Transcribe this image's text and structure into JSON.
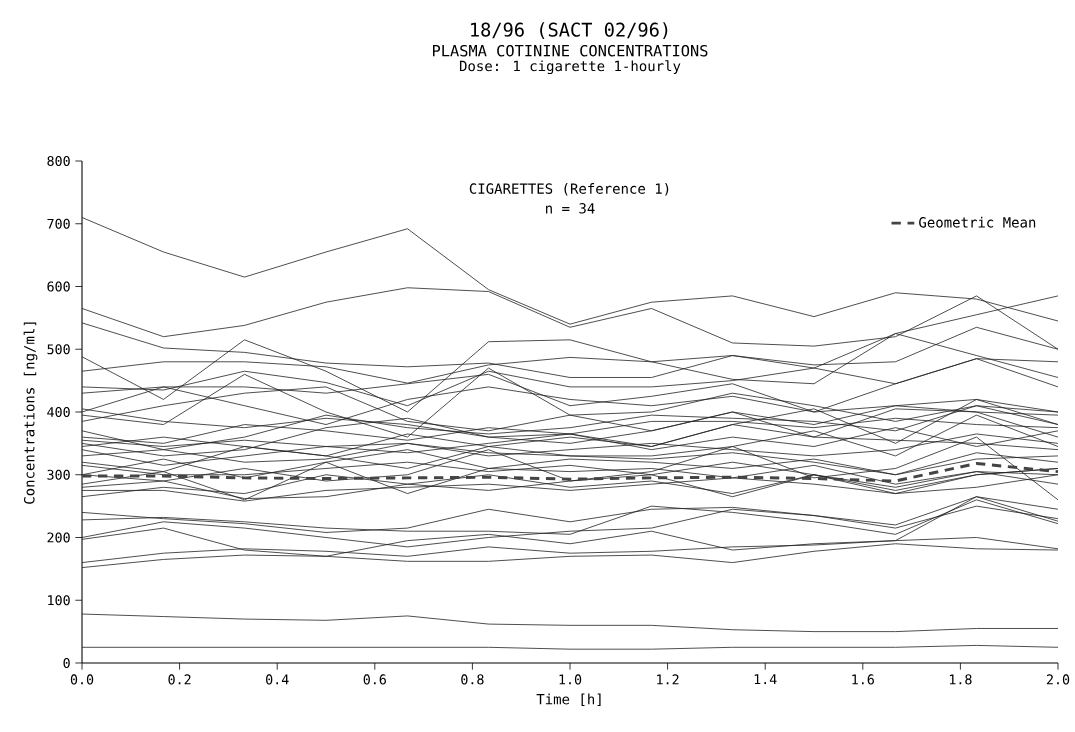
{
  "chart_data": {
    "type": "line",
    "title": "18/96 (SACT 02/96)",
    "subtitle": "PLASMA COTININE CONCENTRATIONS",
    "annotations": [
      "Dose: 1 cigarette 1-hourly",
      "CIGARETTES (Reference 1)",
      "n = 34"
    ],
    "xlabel": "Time [h]",
    "ylabel": "Concentrations [ng/ml]",
    "x": [
      0,
      0.167,
      0.333,
      0.5,
      0.667,
      0.833,
      1.0,
      1.167,
      1.333,
      1.5,
      1.667,
      1.833,
      2.0
    ],
    "xlim": [
      0,
      2
    ],
    "ylim": [
      0,
      800
    ],
    "xticks": [
      {
        "value": 0,
        "label": "0.0"
      },
      0.2,
      0.4,
      0.6,
      0.8,
      {
        "value": 1,
        "label": "1.0"
      },
      1.2,
      1.4,
      1.6,
      1.8,
      {
        "value": 2,
        "label": "2.0"
      }
    ],
    "yticks": [
      0,
      100,
      200,
      300,
      400,
      500,
      600,
      700,
      800
    ],
    "grid": false,
    "legend": "top right",
    "series": [
      {
        "color": "#222222",
        "values": [
          710,
          655,
          615,
          655,
          692,
          595,
          540,
          575,
          585,
          552,
          590,
          580,
          545
        ]
      },
      {
        "color": "#222222",
        "values": [
          565,
          520,
          538,
          575,
          598,
          592,
          535,
          565,
          510,
          505,
          520,
          585,
          500
        ]
      },
      {
        "color": "#222222",
        "values": [
          542,
          502,
          495,
          478,
          472,
          478,
          455,
          455,
          490,
          470,
          525,
          555,
          585
        ]
      },
      {
        "color": "#222222",
        "values": [
          488,
          420,
          515,
          465,
          400,
          512,
          515,
          480,
          452,
          445,
          525,
          490,
          455
        ]
      },
      {
        "color": "#222222",
        "values": [
          465,
          480,
          480,
          472,
          446,
          475,
          487,
          480,
          490,
          475,
          480,
          535,
          500
        ]
      },
      {
        "color": "#222222",
        "values": [
          440,
          435,
          465,
          447,
          410,
          465,
          440,
          440,
          450,
          470,
          445,
          485,
          480
        ]
      },
      {
        "color": "#222222",
        "values": [
          430,
          440,
          440,
          430,
          445,
          460,
          410,
          425,
          445,
          400,
          445,
          485,
          440
        ]
      },
      {
        "color": "#222222",
        "values": [
          400,
          440,
          410,
          380,
          420,
          440,
          420,
          410,
          425,
          400,
          410,
          420,
          400
        ]
      },
      {
        "color": "#222222",
        "values": [
          385,
          410,
          430,
          440,
          385,
          370,
          395,
          400,
          430,
          410,
          385,
          410,
          380
        ]
      },
      {
        "color": "#222222",
        "values": [
          395,
          380,
          460,
          400,
          360,
          470,
          395,
          370,
          400,
          380,
          410,
          400,
          395
        ]
      },
      {
        "color": "#222222",
        "values": [
          370,
          340,
          360,
          395,
          375,
          365,
          375,
          395,
          390,
          385,
          370,
          410,
          400
        ]
      },
      {
        "color": "#222222",
        "values": [
          360,
          350,
          380,
          370,
          355,
          375,
          365,
          385,
          385,
          375,
          390,
          380,
          375
        ]
      },
      {
        "color": "#222222",
        "values": [
          350,
          330,
          340,
          375,
          390,
          360,
          350,
          370,
          400,
          360,
          405,
          400,
          360
        ]
      },
      {
        "color": "#222222",
        "values": [
          345,
          360,
          345,
          330,
          365,
          345,
          360,
          345,
          380,
          405,
          350,
          420,
          380
        ]
      },
      {
        "color": "#222222",
        "values": [
          340,
          315,
          330,
          345,
          335,
          350,
          365,
          340,
          360,
          345,
          375,
          345,
          370
        ]
      },
      {
        "color": "#222222",
        "values": [
          330,
          340,
          320,
          325,
          350,
          330,
          340,
          350,
          340,
          330,
          340,
          365,
          350
        ]
      },
      {
        "color": "#222222",
        "values": [
          320,
          305,
          345,
          330,
          310,
          345,
          330,
          330,
          345,
          370,
          330,
          395,
          345
        ]
      },
      {
        "color": "#222222",
        "values": [
          300,
          325,
          295,
          320,
          340,
          310,
          325,
          320,
          310,
          325,
          300,
          325,
          330
        ]
      },
      {
        "color": "#222222",
        "values": [
          285,
          305,
          260,
          320,
          270,
          310,
          305,
          310,
          295,
          315,
          285,
          305,
          300
        ]
      },
      {
        "color": "#222222",
        "values": [
          300,
          290,
          310,
          290,
          300,
          340,
          290,
          305,
          345,
          295,
          310,
          360,
          260
        ]
      },
      {
        "color": "#222222",
        "values": [
          280,
          290,
          262,
          265,
          285,
          300,
          280,
          290,
          270,
          300,
          275,
          300,
          310
        ]
      },
      {
        "color": "#222222",
        "values": [
          275,
          275,
          258,
          275,
          280,
          285,
          275,
          285,
          295,
          285,
          270,
          280,
          300
        ]
      },
      {
        "color": "#222222",
        "values": [
          240,
          230,
          222,
          208,
          215,
          245,
          225,
          245,
          248,
          235,
          220,
          265,
          245
        ]
      },
      {
        "color": "#222222",
        "values": [
          228,
          232,
          225,
          215,
          210,
          210,
          205,
          250,
          240,
          225,
          205,
          260,
          222
        ]
      },
      {
        "color": "#222222",
        "values": [
          200,
          225,
          215,
          200,
          185,
          200,
          210,
          215,
          245,
          235,
          215,
          250,
          230
        ]
      },
      {
        "color": "#222222",
        "values": [
          197,
          215,
          180,
          170,
          195,
          205,
          190,
          210,
          180,
          190,
          195,
          265,
          226
        ]
      },
      {
        "color": "#222222",
        "values": [
          160,
          175,
          182,
          178,
          170,
          185,
          175,
          178,
          185,
          188,
          195,
          200,
          182
        ]
      },
      {
        "color": "#222222",
        "values": [
          152,
          165,
          172,
          170,
          162,
          162,
          170,
          172,
          160,
          178,
          190,
          182,
          180
        ]
      },
      {
        "color": "#222222",
        "values": [
          78,
          74,
          70,
          68,
          75,
          62,
          60,
          60,
          53,
          50,
          50,
          55,
          55
        ]
      },
      {
        "color": "#222222",
        "values": [
          25,
          25,
          25,
          25,
          25,
          25,
          22,
          22,
          25,
          25,
          25,
          28,
          25
        ]
      },
      {
        "color": "#222222",
        "values": [
          355,
          345,
          355,
          345,
          350,
          335,
          330,
          325,
          335,
          320,
          300,
          335,
          320
        ]
      },
      {
        "color": "#222222",
        "values": [
          405,
          385,
          375,
          390,
          380,
          360,
          365,
          345,
          380,
          360,
          355,
          350,
          340
        ]
      },
      {
        "color": "#222222",
        "values": [
          315,
          300,
          300,
          310,
          320,
          305,
          315,
          300,
          320,
          300,
          270,
          300,
          310
        ]
      },
      {
        "color": "#222222",
        "values": [
          265,
          280,
          270,
          300,
          285,
          275,
          290,
          300,
          265,
          300,
          280,
          305,
          285
        ]
      },
      {
        "name": "Geometric Mean",
        "color": "#444444",
        "line_style": "dashed",
        "values": [
          298,
          298,
          295,
          294,
          295,
          296,
          293,
          295,
          296,
          294,
          290,
          318,
          305
        ]
      }
    ]
  }
}
